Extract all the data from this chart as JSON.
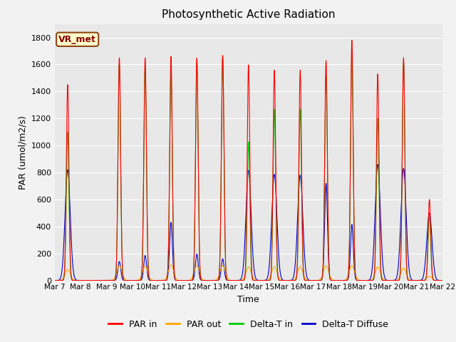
{
  "title": "Photosynthetic Active Radiation",
  "ylabel": "PAR (umol/m2/s)",
  "xlabel": "Time",
  "ylim": [
    0,
    1900
  ],
  "yticks": [
    0,
    200,
    400,
    600,
    800,
    1000,
    1200,
    1400,
    1600,
    1800
  ],
  "xtick_labels": [
    "Mar 7",
    "Mar 8",
    "Mar 9",
    "Mar 10",
    "Mar 11",
    "Mar 12",
    "Mar 13",
    "Mar 14",
    "Mar 15",
    "Mar 16",
    "Mar 17",
    "Mar 18",
    "Mar 19",
    "Mar 20",
    "Mar 21",
    "Mar 22"
  ],
  "annotation_text": "VR_met",
  "annotation_bg": "#ffffcc",
  "annotation_border": "#8B4513",
  "colors": {
    "PAR_in": "#ff0000",
    "PAR_out": "#ffa500",
    "Delta_T_in": "#00cc00",
    "Delta_T_Diffuse": "#0000cc"
  },
  "legend_labels": [
    "PAR in",
    "PAR out",
    "Delta-T in",
    "Delta-T Diffuse"
  ],
  "bg_color": "#e8e8e8",
  "grid_color": "#ffffff",
  "fig_bg": "#f2f2f2"
}
